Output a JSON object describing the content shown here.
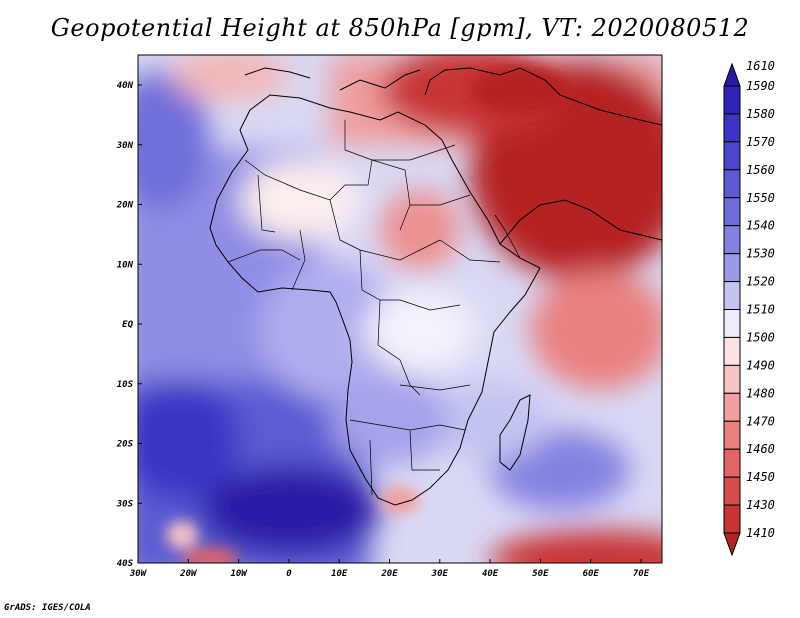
{
  "title": "Geopotential Height at 850hPa [gpm], VT: 2020080512",
  "credit": "GrADS: IGES/COLA",
  "map": {
    "lon_labels": [
      "30W",
      "20W",
      "10W",
      "0",
      "10E",
      "20E",
      "30E",
      "40E",
      "50E",
      "60E",
      "70E"
    ],
    "lat_labels": [
      "40N",
      "30N",
      "20N",
      "10N",
      "EQ",
      "10S",
      "20S",
      "30S",
      "40S"
    ]
  },
  "colorbar": {
    "levels": [
      {
        "label": "1610",
        "color": "#2b1aa6"
      },
      {
        "label": "1590",
        "color": "#2f24b8"
      },
      {
        "label": "1580",
        "color": "#3a35c4"
      },
      {
        "label": "1570",
        "color": "#4a47cc"
      },
      {
        "label": "1560",
        "color": "#5c5ad2"
      },
      {
        "label": "1550",
        "color": "#6f6ed9"
      },
      {
        "label": "1540",
        "color": "#8482e0"
      },
      {
        "label": "1530",
        "color": "#9c9ae7"
      },
      {
        "label": "1520",
        "color": "#c4c4f2"
      },
      {
        "label": "1510",
        "color": "#ececfb"
      },
      {
        "label": "1500",
        "color": "#fbe3e3"
      },
      {
        "label": "1490",
        "color": "#f6c3c3"
      },
      {
        "label": "1480",
        "color": "#f0a0a0"
      },
      {
        "label": "1470",
        "color": "#e98181"
      },
      {
        "label": "1460",
        "color": "#e26464"
      },
      {
        "label": "1450",
        "color": "#d84c4c"
      },
      {
        "label": "1430",
        "color": "#c83434"
      },
      {
        "label": "1410",
        "color": "#b52222"
      }
    ]
  }
}
